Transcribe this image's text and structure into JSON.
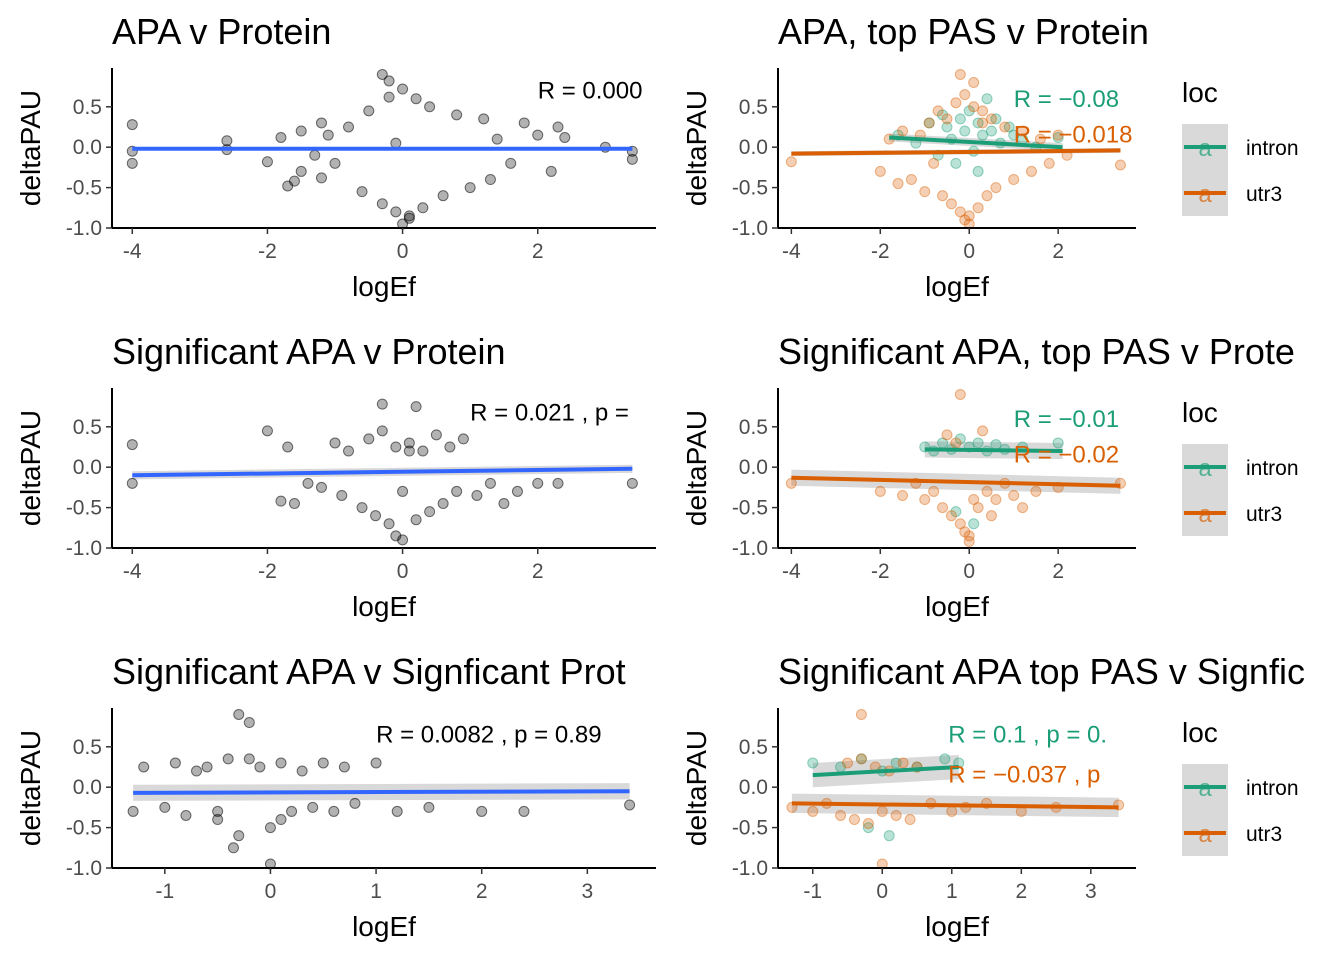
{
  "colors": {
    "all_points": "#000000",
    "fit_all": "#3366ff",
    "intron": "#1b9e77",
    "utr3": "#d95f02",
    "ribbon": "#cccccc",
    "legend_key_bg": "#d9d9d9"
  },
  "legend": {
    "title": "loc",
    "items": [
      "intron",
      "utr3"
    ],
    "key_glyph": "a"
  },
  "chart_data": [
    {
      "type": "scatter",
      "title": "APA v Protein",
      "xlabel": "logEf",
      "ylabel": "deltaPAU",
      "xlim": [
        -4.3,
        3.75
      ],
      "ylim": [
        -1.0,
        0.98
      ],
      "xticks": [
        -4,
        -2,
        0,
        2
      ],
      "xtick_labels": [
        "-4",
        "-2",
        "0",
        "2"
      ],
      "yticks": [
        -1.0,
        -0.5,
        0.0,
        0.5
      ],
      "ytick_labels": [
        "-1.0",
        "-0.5",
        "0.0",
        "0.5"
      ],
      "grid": false,
      "legend": false,
      "annotation": {
        "text": "R = 0.000",
        "x": 2.0,
        "y": 0.6
      },
      "fits": [
        {
          "x": [
            -4.0,
            3.4
          ],
          "y": [
            -0.02,
            -0.02
          ],
          "se": 0.02,
          "color": "fit_all"
        }
      ],
      "series": [
        {
          "color": "all_points",
          "x": [
            -4.0,
            -4.0,
            -4.0,
            -2.6,
            -2.6,
            -2.0,
            -1.8,
            -1.7,
            -1.6,
            -1.5,
            -1.5,
            -1.3,
            -1.2,
            -1.2,
            -1.1,
            -1.0,
            -0.8,
            -0.6,
            -0.5,
            -0.3,
            -0.2,
            -0.1,
            0.0,
            0.1,
            0.2,
            0.3,
            0.4,
            0.6,
            0.8,
            1.0,
            1.2,
            1.3,
            1.4,
            1.6,
            1.8,
            2.0,
            2.2,
            2.3,
            2.4,
            3.0,
            3.4,
            3.4,
            -0.3,
            0.0,
            -0.2,
            0.1,
            -0.1
          ],
          "y": [
            0.28,
            -0.05,
            -0.2,
            0.08,
            -0.03,
            -0.18,
            0.12,
            -0.48,
            -0.42,
            0.2,
            -0.3,
            -0.1,
            0.3,
            -0.38,
            0.15,
            -0.2,
            0.25,
            -0.55,
            0.45,
            -0.7,
            0.62,
            -0.8,
            0.72,
            -0.85,
            0.6,
            -0.75,
            0.5,
            -0.6,
            0.4,
            -0.5,
            0.35,
            -0.4,
            0.1,
            -0.2,
            0.3,
            0.15,
            -0.3,
            0.25,
            0.12,
            0.0,
            -0.05,
            -0.15,
            0.9,
            -0.95,
            0.82,
            -0.88,
            0.05
          ]
        }
      ]
    },
    {
      "type": "scatter",
      "title": "APA, top PAS  v Protein",
      "xlabel": "logEf",
      "ylabel": "deltaPAU",
      "xlim": [
        -4.3,
        3.75
      ],
      "ylim": [
        -1.0,
        0.98
      ],
      "xticks": [
        -4,
        -2,
        0,
        2
      ],
      "xtick_labels": [
        "-4",
        "-2",
        "0",
        "2"
      ],
      "yticks": [
        -1.0,
        -0.5,
        0.0,
        0.5
      ],
      "ytick_labels": [
        "-1.0",
        "-0.5",
        "0.0",
        "0.5"
      ],
      "grid": false,
      "legend": "right",
      "annotations": [
        {
          "text": "R = −0.08",
          "x": 1.0,
          "y": 0.5,
          "color": "intron"
        },
        {
          "text": "R = −0.018",
          "x": 1.0,
          "y": 0.06,
          "color": "utr3"
        }
      ],
      "fits": [
        {
          "name": "intron",
          "x": [
            -1.8,
            2.1
          ],
          "y": [
            0.12,
            0.0
          ],
          "se": 0.05,
          "color": "intron"
        },
        {
          "name": "utr3",
          "x": [
            -4.0,
            3.4
          ],
          "y": [
            -0.08,
            -0.04
          ],
          "se": 0.03,
          "color": "utr3"
        }
      ],
      "series": [
        {
          "name": "intron",
          "color": "intron",
          "x": [
            -1.6,
            -1.2,
            -0.9,
            -0.7,
            -0.5,
            -0.4,
            -0.3,
            -0.2,
            -0.1,
            0.0,
            0.1,
            0.2,
            0.3,
            0.4,
            0.5,
            0.7,
            0.9,
            1.2,
            1.5,
            2.0,
            -0.6,
            0.2,
            0.6,
            1.0
          ],
          "y": [
            0.15,
            0.05,
            0.3,
            -0.1,
            0.25,
            0.1,
            -0.2,
            0.35,
            0.2,
            0.45,
            -0.05,
            0.3,
            0.15,
            0.6,
            0.2,
            0.05,
            0.25,
            0.1,
            0.0,
            0.12,
            0.4,
            -0.3,
            0.35,
            0.15
          ]
        },
        {
          "name": "utr3",
          "color": "utr3",
          "x": [
            -4.0,
            -2.0,
            -1.8,
            -1.6,
            -1.5,
            -1.3,
            -1.1,
            -1.0,
            -0.9,
            -0.8,
            -0.7,
            -0.6,
            -0.5,
            -0.4,
            -0.3,
            -0.2,
            -0.1,
            0.0,
            0.1,
            0.2,
            0.3,
            0.4,
            0.5,
            0.6,
            0.8,
            1.0,
            1.2,
            1.4,
            1.6,
            1.8,
            2.0,
            2.2,
            3.4,
            -0.2,
            0.0,
            0.1,
            -0.1,
            0.3
          ],
          "y": [
            -0.18,
            -0.3,
            0.1,
            -0.45,
            0.2,
            -0.4,
            0.15,
            -0.55,
            0.3,
            -0.2,
            0.45,
            -0.6,
            0.35,
            -0.7,
            0.55,
            -0.8,
            0.65,
            -0.85,
            0.5,
            -0.75,
            0.45,
            -0.6,
            0.35,
            -0.5,
            0.25,
            -0.4,
            0.2,
            -0.3,
            0.1,
            -0.2,
            0.15,
            -0.1,
            -0.22,
            0.9,
            -0.95,
            0.8,
            -0.9,
            0.3
          ]
        }
      ]
    },
    {
      "type": "scatter",
      "title": "Significant APA v Protein",
      "xlabel": "logEf",
      "ylabel": "deltaPAU",
      "xlim": [
        -4.3,
        3.75
      ],
      "ylim": [
        -1.0,
        0.98
      ],
      "xticks": [
        -4,
        -2,
        0,
        2
      ],
      "xtick_labels": [
        "-4",
        "-2",
        "0",
        "2"
      ],
      "yticks": [
        -1.0,
        -0.5,
        0.0,
        0.5
      ],
      "ytick_labels": [
        "-1.0",
        "-0.5",
        "0.0",
        "0.5"
      ],
      "grid": false,
      "legend": false,
      "annotation": {
        "text": "R = 0.021 , p =",
        "x": 1.0,
        "y": 0.58
      },
      "fits": [
        {
          "x": [
            -4.0,
            3.4
          ],
          "y": [
            -0.1,
            -0.02
          ],
          "se": 0.05,
          "color": "fit_all"
        }
      ],
      "series": [
        {
          "color": "all_points",
          "x": [
            -4.0,
            -4.0,
            -2.0,
            -1.8,
            -1.7,
            -1.6,
            -1.4,
            -1.2,
            -1.0,
            -0.9,
            -0.8,
            -0.6,
            -0.5,
            -0.4,
            -0.3,
            -0.2,
            -0.1,
            0.0,
            0.1,
            0.2,
            0.3,
            0.4,
            0.5,
            0.6,
            0.7,
            0.8,
            0.9,
            1.1,
            1.3,
            1.5,
            1.7,
            2.0,
            2.3,
            3.4,
            -0.3,
            0.0,
            0.2,
            -0.1,
            0.1
          ],
          "y": [
            0.28,
            -0.2,
            0.45,
            -0.42,
            0.25,
            -0.45,
            -0.2,
            -0.25,
            0.3,
            -0.35,
            0.2,
            -0.5,
            0.35,
            -0.6,
            0.45,
            -0.7,
            0.25,
            -0.3,
            0.3,
            -0.65,
            0.2,
            -0.55,
            0.4,
            -0.45,
            0.25,
            -0.3,
            0.35,
            -0.35,
            -0.2,
            -0.45,
            -0.3,
            -0.2,
            -0.2,
            -0.2,
            0.78,
            -0.9,
            0.75,
            -0.85,
            0.2
          ]
        }
      ]
    },
    {
      "type": "scatter",
      "title": "Significant APA, top PAS v Prote",
      "xlabel": "logEf",
      "ylabel": "deltaPAU",
      "xlim": [
        -4.3,
        3.75
      ],
      "ylim": [
        -1.0,
        0.98
      ],
      "xticks": [
        -4,
        -2,
        0,
        2
      ],
      "xtick_labels": [
        "-4",
        "-2",
        "0",
        "2"
      ],
      "yticks": [
        -1.0,
        -0.5,
        0.0,
        0.5
      ],
      "ytick_labels": [
        "-1.0",
        "-0.5",
        "0.0",
        "0.5"
      ],
      "grid": false,
      "legend": "right",
      "annotations": [
        {
          "text": "R = −0.01",
          "x": 1.0,
          "y": 0.5,
          "color": "intron"
        },
        {
          "text": "R = −0.02",
          "x": 1.0,
          "y": 0.06,
          "color": "utr3"
        }
      ],
      "fits": [
        {
          "name": "intron",
          "x": [
            -1.0,
            2.1
          ],
          "y": [
            0.22,
            0.2
          ],
          "se": 0.1,
          "color": "intron"
        },
        {
          "name": "utr3",
          "x": [
            -4.0,
            3.4
          ],
          "y": [
            -0.13,
            -0.23
          ],
          "se": 0.1,
          "color": "utr3"
        }
      ],
      "series": [
        {
          "name": "intron",
          "color": "intron",
          "x": [
            -1.0,
            -0.8,
            -0.6,
            -0.4,
            -0.2,
            0.0,
            0.2,
            0.4,
            0.6,
            0.8,
            1.2,
            2.0,
            -0.3,
            0.1
          ],
          "y": [
            0.25,
            0.2,
            0.3,
            0.22,
            0.35,
            0.25,
            0.3,
            0.2,
            0.28,
            0.22,
            0.25,
            0.3,
            -0.55,
            -0.7
          ]
        },
        {
          "name": "utr3",
          "color": "utr3",
          "x": [
            -4.0,
            -2.0,
            -1.5,
            -1.2,
            -1.0,
            -0.8,
            -0.6,
            -0.5,
            -0.4,
            -0.3,
            -0.2,
            -0.1,
            0.0,
            0.1,
            0.2,
            0.3,
            0.4,
            0.5,
            0.6,
            0.8,
            1.0,
            1.2,
            1.5,
            2.0,
            3.4,
            -0.2,
            0.0
          ],
          "y": [
            -0.2,
            -0.3,
            -0.35,
            -0.2,
            -0.4,
            -0.3,
            -0.5,
            0.4,
            -0.6,
            0.3,
            -0.7,
            -0.8,
            -0.85,
            -0.4,
            -0.5,
            0.45,
            -0.3,
            -0.6,
            -0.4,
            -0.2,
            -0.35,
            -0.5,
            -0.3,
            -0.25,
            -0.2,
            0.9,
            -0.92
          ]
        }
      ]
    },
    {
      "type": "scatter",
      "title": "Significant APA v Signficant Prot",
      "xlabel": "logEf",
      "ylabel": "deltaPAU",
      "xlim": [
        -1.5,
        3.65
      ],
      "ylim": [
        -1.0,
        0.98
      ],
      "xticks": [
        -1,
        0,
        1,
        2,
        3
      ],
      "xtick_labels": [
        "-1",
        "0",
        "1",
        "2",
        "3"
      ],
      "yticks": [
        -1.0,
        -0.5,
        0.0,
        0.5
      ],
      "ytick_labels": [
        "-1.0",
        "-0.5",
        "0.0",
        "0.5"
      ],
      "grid": false,
      "legend": false,
      "annotation": {
        "text": "R = 0.0082 , p = 0.89",
        "x": 1.0,
        "y": 0.55
      },
      "fits": [
        {
          "x": [
            -1.3,
            3.4
          ],
          "y": [
            -0.07,
            -0.05
          ],
          "se": 0.1,
          "color": "fit_all"
        }
      ],
      "series": [
        {
          "color": "all_points",
          "x": [
            -1.3,
            -1.2,
            -1.0,
            -0.9,
            -0.8,
            -0.7,
            -0.6,
            -0.5,
            -0.4,
            -0.35,
            -0.3,
            -0.2,
            -0.1,
            0.0,
            0.1,
            0.2,
            0.3,
            0.4,
            0.5,
            0.6,
            0.7,
            0.8,
            1.0,
            1.2,
            1.5,
            2.0,
            2.4,
            3.4,
            -0.3,
            0.0,
            -0.2,
            0.1,
            -0.5
          ],
          "y": [
            -0.3,
            0.25,
            -0.25,
            0.3,
            -0.35,
            0.2,
            0.25,
            -0.4,
            0.35,
            -0.75,
            0.9,
            0.8,
            0.25,
            -0.95,
            0.3,
            -0.3,
            0.2,
            -0.25,
            0.3,
            -0.3,
            0.25,
            -0.2,
            0.3,
            -0.3,
            -0.25,
            -0.3,
            -0.3,
            -0.22,
            -0.6,
            -0.5,
            0.35,
            -0.4,
            -0.3
          ]
        }
      ]
    },
    {
      "type": "scatter",
      "title": "Significant APA top PAS v Signfic",
      "xlabel": "logEf",
      "ylabel": "deltaPAU",
      "xlim": [
        -1.5,
        3.65
      ],
      "ylim": [
        -1.0,
        0.98
      ],
      "xticks": [
        -1,
        0,
        1,
        2,
        3
      ],
      "xtick_labels": [
        "-1",
        "0",
        "1",
        "2",
        "3"
      ],
      "yticks": [
        -1.0,
        -0.5,
        0.0,
        0.5
      ],
      "ytick_labels": [
        "-1.0",
        "-0.5",
        "0.0",
        "0.5"
      ],
      "grid": false,
      "legend": "right",
      "annotations": [
        {
          "text": "R = 0.1 , p = 0.",
          "x": 0.95,
          "y": 0.55,
          "color": "intron"
        },
        {
          "text": "R = −0.037 , p",
          "x": 0.95,
          "y": 0.06,
          "color": "utr3"
        }
      ],
      "fits": [
        {
          "name": "intron",
          "x": [
            -1.0,
            1.1
          ],
          "y": [
            0.15,
            0.25
          ],
          "se": 0.15,
          "color": "intron"
        },
        {
          "name": "utr3",
          "x": [
            -1.3,
            3.4
          ],
          "y": [
            -0.2,
            -0.25
          ],
          "se": 0.12,
          "color": "utr3"
        }
      ],
      "series": [
        {
          "name": "intron",
          "color": "intron",
          "x": [
            -1.0,
            -0.6,
            -0.3,
            0.0,
            0.2,
            0.5,
            0.9,
            1.1,
            -0.2,
            0.1
          ],
          "y": [
            0.3,
            0.25,
            0.35,
            0.2,
            0.3,
            0.25,
            0.35,
            0.3,
            -0.5,
            -0.6
          ]
        },
        {
          "name": "utr3",
          "color": "utr3",
          "x": [
            -1.3,
            -1.0,
            -0.8,
            -0.6,
            -0.5,
            -0.4,
            -0.3,
            -0.2,
            -0.1,
            0.0,
            0.1,
            0.2,
            0.3,
            0.4,
            0.5,
            0.7,
            1.0,
            1.2,
            1.5,
            2.0,
            2.5,
            3.4,
            -0.3,
            0.0
          ],
          "y": [
            -0.25,
            -0.3,
            -0.2,
            -0.35,
            0.3,
            -0.4,
            0.35,
            -0.45,
            0.25,
            -0.3,
            0.2,
            -0.35,
            0.3,
            -0.4,
            0.25,
            -0.2,
            -0.3,
            -0.25,
            -0.2,
            -0.3,
            -0.25,
            -0.22,
            0.9,
            -0.95
          ]
        }
      ]
    }
  ]
}
